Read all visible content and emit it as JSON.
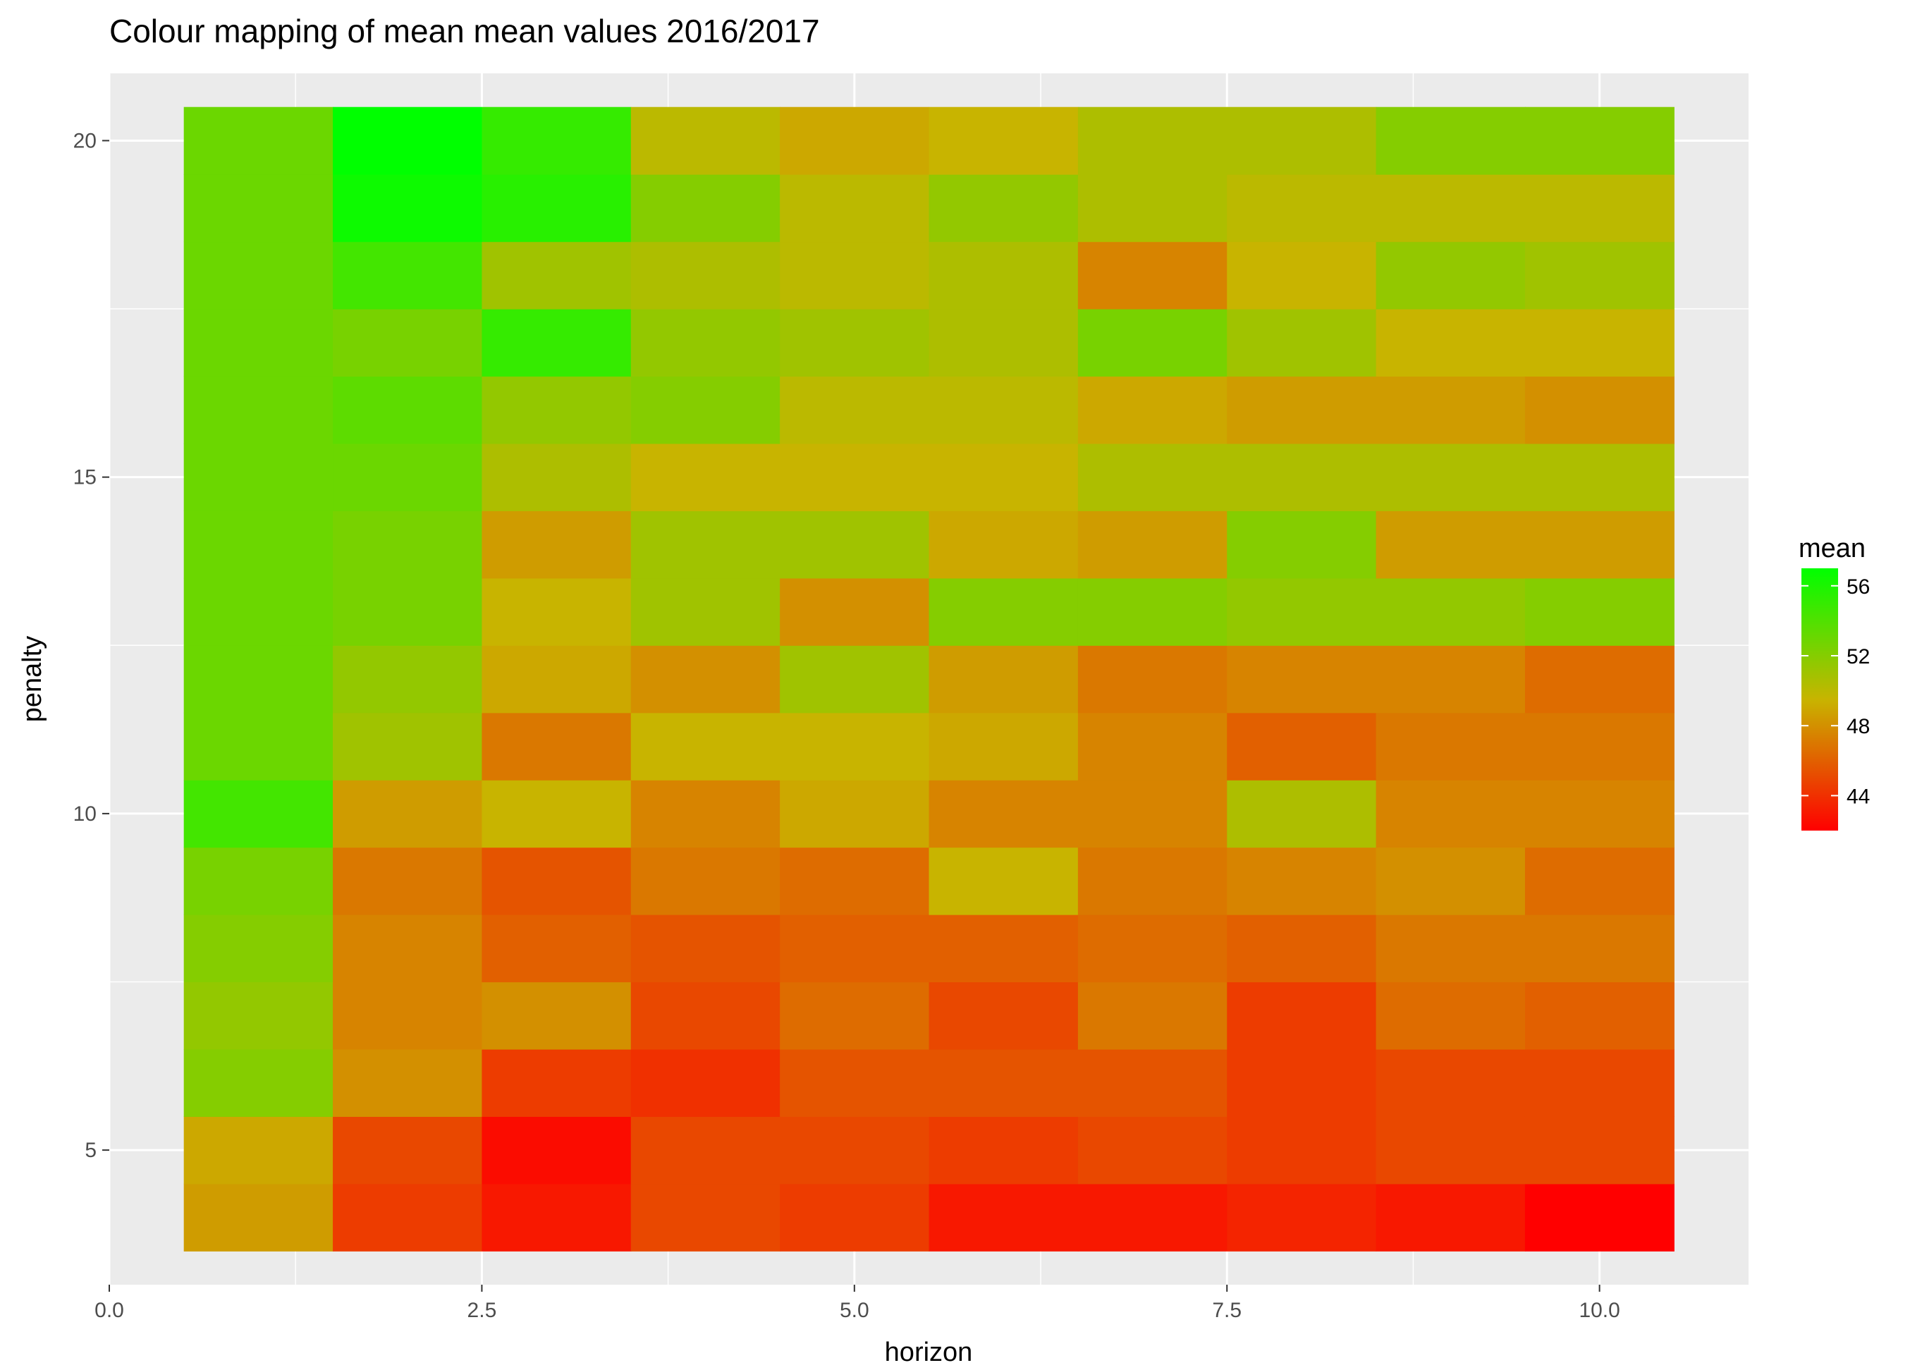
{
  "chart_data": {
    "type": "heatmap",
    "title": "Colour mapping of mean mean values 2016/2017",
    "xlabel": "horizon",
    "ylabel": "penalty",
    "xlim": [
      0,
      11
    ],
    "ylim": [
      3,
      21
    ],
    "x_ticks": [
      0,
      2.5,
      5,
      7.5,
      10
    ],
    "x_tick_labels": [
      "0.0",
      "2.5",
      "5.0",
      "7.5",
      "10.0"
    ],
    "y_ticks": [
      5,
      10,
      15,
      20
    ],
    "y_tick_labels": [
      "5",
      "10",
      "15",
      "20"
    ],
    "grid": true,
    "legend": {
      "title": "mean",
      "position": "right",
      "min": 42,
      "max": 57,
      "ticks": [
        44,
        48,
        52,
        56
      ],
      "tick_labels": [
        "44",
        "48",
        "52",
        "56"
      ],
      "low_color": "#ff0000",
      "high_color": "#00ff00"
    },
    "x": [
      1,
      2,
      3,
      4,
      5,
      6,
      7,
      8,
      9,
      10
    ],
    "y": [
      4,
      5,
      6,
      7,
      8,
      9,
      10,
      11,
      12,
      13,
      14,
      15,
      16,
      17,
      18,
      19,
      20
    ],
    "z": [
      [
        48.5,
        44.5,
        43.0,
        45.0,
        44.5,
        43.0,
        43.0,
        43.5,
        43.0,
        42.0
      ],
      [
        49.0,
        45.0,
        42.5,
        45.0,
        45.0,
        44.5,
        45.0,
        44.5,
        45.0,
        45.0
      ],
      [
        52.0,
        48.0,
        44.5,
        44.0,
        45.5,
        45.5,
        45.5,
        44.5,
        45.0,
        45.0
      ],
      [
        51.5,
        47.5,
        48.0,
        45.0,
        46.5,
        45.0,
        47.0,
        44.5,
        46.5,
        46.0
      ],
      [
        52.0,
        47.5,
        46.0,
        45.5,
        46.0,
        46.0,
        46.5,
        46.0,
        47.0,
        47.0
      ],
      [
        52.5,
        47.0,
        45.5,
        47.0,
        46.5,
        49.5,
        47.0,
        47.5,
        48.0,
        46.5
      ],
      [
        54.5,
        48.5,
        49.5,
        47.5,
        49.0,
        47.5,
        47.5,
        50.5,
        47.5,
        47.5
      ],
      [
        53.0,
        51.0,
        47.0,
        49.5,
        49.5,
        49.0,
        47.5,
        46.0,
        47.0,
        47.0
      ],
      [
        53.0,
        51.5,
        49.0,
        48.0,
        51.0,
        48.5,
        47.0,
        47.5,
        47.5,
        46.5
      ],
      [
        53.0,
        52.5,
        49.5,
        51.0,
        48.0,
        52.0,
        52.0,
        51.5,
        51.5,
        52.0
      ],
      [
        53.0,
        52.5,
        48.5,
        51.0,
        51.0,
        49.0,
        48.5,
        52.0,
        48.5,
        48.5
      ],
      [
        53.0,
        53.0,
        50.5,
        49.5,
        49.5,
        49.5,
        50.5,
        50.5,
        50.5,
        50.5
      ],
      [
        53.0,
        53.5,
        51.5,
        52.0,
        50.0,
        50.0,
        49.0,
        48.5,
        48.5,
        48.0
      ],
      [
        53.0,
        52.5,
        55.0,
        51.5,
        51.0,
        50.5,
        52.5,
        51.0,
        49.5,
        49.5
      ],
      [
        53.0,
        54.5,
        51.0,
        50.5,
        50.0,
        50.5,
        47.5,
        49.5,
        51.5,
        51.0
      ],
      [
        53.0,
        56.5,
        55.5,
        52.0,
        50.0,
        51.5,
        50.5,
        50.0,
        50.0,
        50.0
      ],
      [
        53.0,
        57.0,
        55.0,
        50.0,
        49.0,
        49.5,
        50.5,
        50.5,
        52.0,
        52.0
      ]
    ]
  }
}
